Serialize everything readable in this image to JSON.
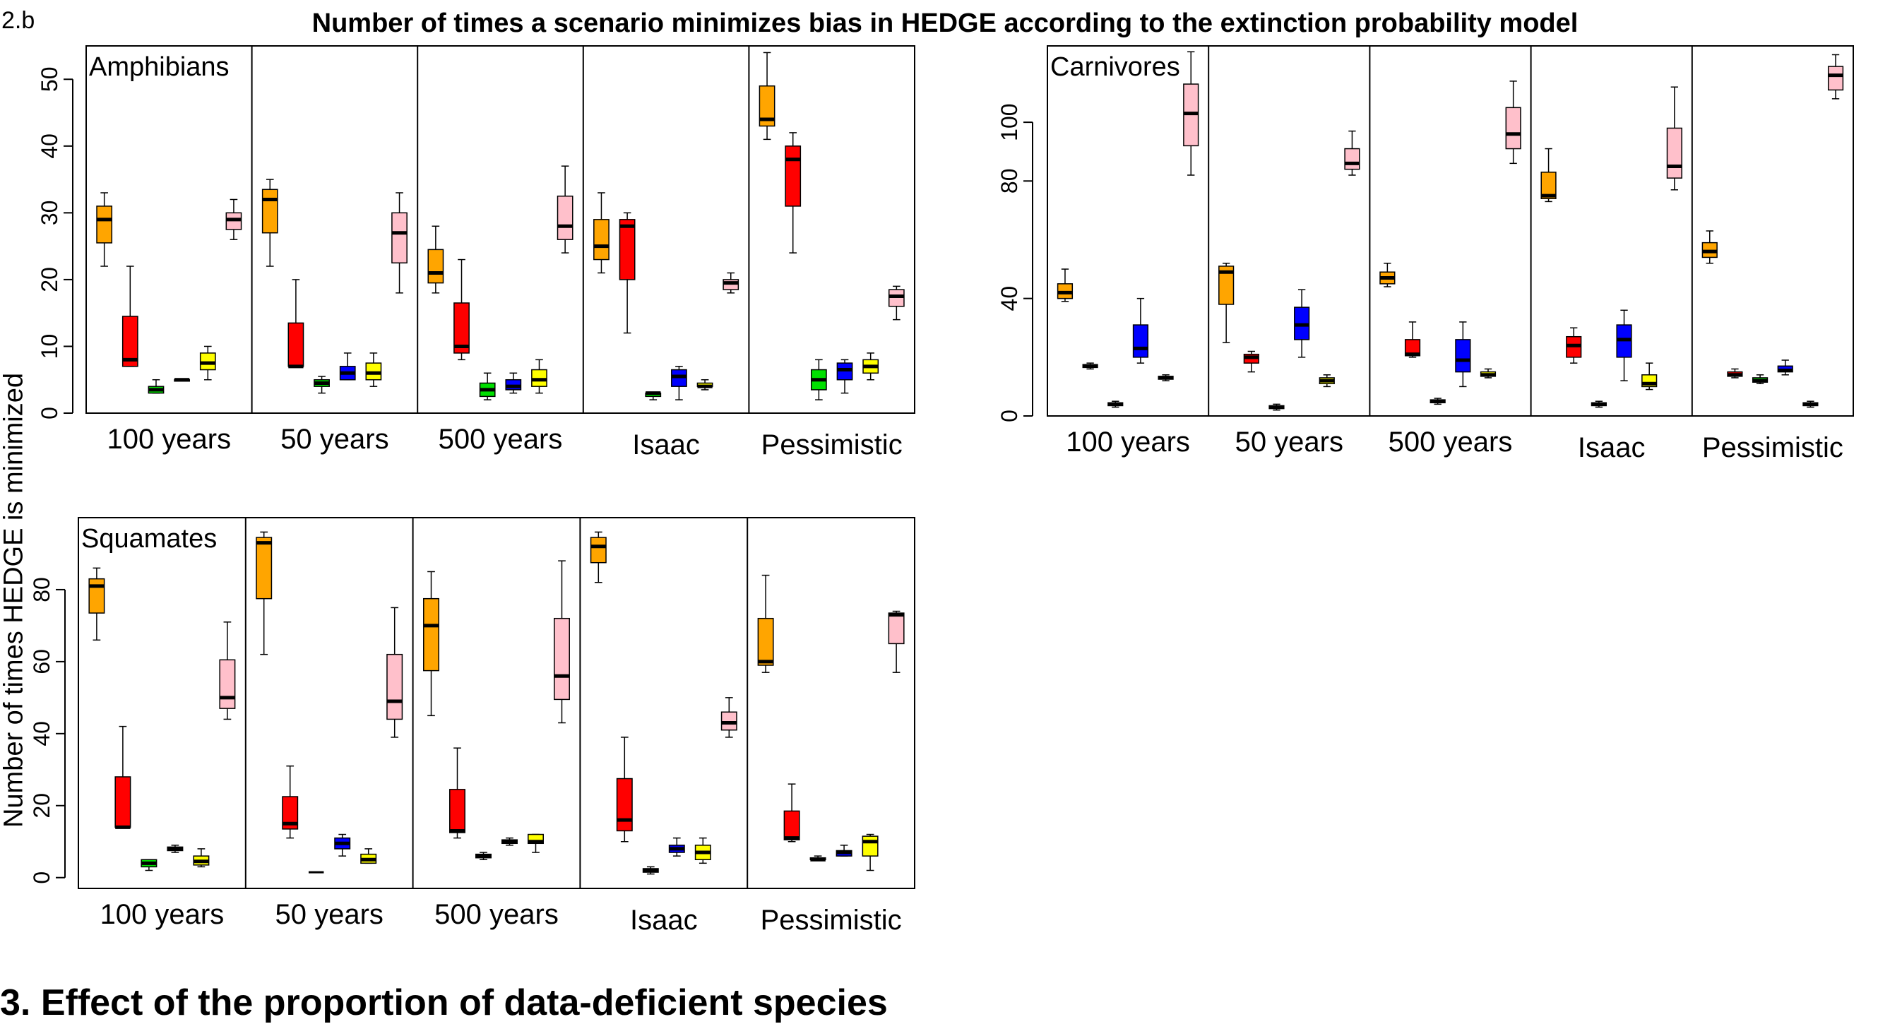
{
  "figure": {
    "label": "2.b",
    "title": "Number of times a scenario minimizes bias in HEDGE according to the extinction probability model",
    "ylabel": "Number of times HEDGE is minimized",
    "next_section_heading": "3. Effect of the proportion of data-deficient species"
  },
  "colors": [
    "#FFA500",
    "#FF0000",
    "#00E000",
    "#0000FF",
    "#FFFF00",
    "#FFC0CB"
  ],
  "chart_data": [
    {
      "type": "box",
      "panel": "Amphibians",
      "title": "Amphibians",
      "groups": [
        "100 years",
        "50 years",
        "500 years",
        "Isaac",
        "Pessimistic"
      ],
      "ylim": [
        0,
        55
      ],
      "yticks": [
        0,
        10,
        20,
        30,
        40,
        50
      ],
      "missing_boxes": [],
      "boxes": [
        [
          [
            22,
            25.5,
            29,
            31,
            33
          ],
          [
            7,
            7,
            8,
            14.5,
            22
          ],
          [
            3,
            3,
            3.5,
            4,
            5
          ],
          [
            5,
            5,
            5,
            5,
            5
          ],
          [
            5,
            6.5,
            7.5,
            9,
            10
          ],
          [
            26,
            27.5,
            29,
            30,
            32
          ]
        ],
        [
          [
            22,
            27,
            32,
            33.5,
            35
          ],
          [
            7,
            7,
            7,
            13.5,
            20
          ],
          [
            3,
            4,
            4.5,
            5,
            5.5
          ],
          [
            5,
            5,
            6,
            7,
            9
          ],
          [
            4,
            5,
            6,
            7.5,
            9
          ],
          [
            18,
            22.5,
            27,
            30,
            33
          ]
        ],
        [
          [
            18,
            19.5,
            21,
            24.5,
            28
          ],
          [
            8,
            9,
            10,
            16.5,
            23
          ],
          [
            2,
            2.5,
            3.5,
            4.5,
            6
          ],
          [
            3,
            3.5,
            4,
            5,
            6
          ],
          [
            3,
            4,
            5,
            6.5,
            8
          ],
          [
            24,
            26,
            28,
            32.5,
            37
          ]
        ],
        [
          [
            21,
            23,
            25,
            29,
            33
          ],
          [
            12,
            20,
            28,
            29,
            30
          ],
          [
            2,
            2.5,
            3,
            3,
            3
          ],
          [
            2,
            4,
            5.5,
            6.5,
            7
          ],
          [
            3.5,
            4,
            4,
            4.5,
            5
          ],
          [
            18,
            18.5,
            19.5,
            20,
            21
          ]
        ],
        [
          [
            41,
            43,
            44,
            49,
            54
          ],
          [
            24,
            31,
            38,
            40,
            42
          ],
          [
            2,
            3.5,
            5,
            6.5,
            8
          ],
          [
            3,
            5,
            6.5,
            7.5,
            8
          ],
          [
            5,
            6,
            7,
            8,
            9
          ],
          [
            14,
            16,
            17.5,
            18.5,
            19
          ]
        ]
      ]
    },
    {
      "type": "box",
      "panel": "Carnivores",
      "title": "Carnivores",
      "groups": [
        "100 years",
        "50 years",
        "500 years",
        "Isaac",
        "Pessimistic"
      ],
      "ylim": [
        0,
        126
      ],
      "yticks": [
        0,
        40,
        80,
        100
      ],
      "missing_boxes": [],
      "boxes": [
        [
          [
            39,
            40,
            42,
            45,
            50
          ],
          [
            16,
            16.5,
            17,
            17.5,
            18
          ],
          [
            3,
            3.5,
            4,
            4.5,
            5
          ],
          [
            18,
            20,
            23,
            31,
            40
          ],
          [
            12,
            12.5,
            13,
            13.5,
            14
          ],
          [
            82,
            92,
            103,
            113,
            124
          ]
        ],
        [
          [
            25,
            38,
            49,
            51,
            52
          ],
          [
            15,
            18,
            20,
            21,
            22
          ],
          [
            2,
            2.5,
            3,
            3.5,
            4
          ],
          [
            20,
            26,
            31,
            37,
            43
          ],
          [
            10,
            11,
            12,
            13,
            14
          ],
          [
            82,
            84,
            86,
            91,
            97
          ]
        ],
        [
          [
            44,
            45,
            47,
            49,
            52
          ],
          [
            20,
            20.5,
            21,
            26,
            32
          ],
          [
            4,
            4.5,
            5,
            5.5,
            6
          ],
          [
            10,
            15,
            19,
            26,
            32
          ],
          [
            13,
            13.5,
            14,
            15,
            16
          ],
          [
            86,
            91,
            96,
            105,
            114
          ]
        ],
        [
          [
            73,
            74,
            75,
            83,
            91
          ],
          [
            18,
            20,
            24,
            27,
            30
          ],
          [
            3,
            3.5,
            4,
            4.5,
            5
          ],
          [
            12,
            20,
            26,
            31,
            36
          ],
          [
            9,
            10,
            11,
            14,
            18
          ],
          [
            77,
            81,
            85,
            98,
            112
          ]
        ],
        [
          [
            52,
            54,
            56,
            59,
            63
          ],
          [
            13,
            13.5,
            14,
            15,
            16
          ],
          [
            11,
            11.5,
            12,
            13,
            14
          ],
          [
            14,
            15,
            15.5,
            17,
            19
          ],
          [
            3,
            3.5,
            4,
            4.5,
            5
          ],
          [
            108,
            111,
            116,
            119,
            123
          ]
        ]
      ]
    },
    {
      "type": "box",
      "panel": "Squamates",
      "title": "Squamates",
      "groups": [
        "100 years",
        "50 years",
        "500 years",
        "Isaac",
        "Pessimistic"
      ],
      "ylim": [
        -3,
        100
      ],
      "yticks": [
        0,
        20,
        40,
        60,
        80
      ],
      "missing_boxes": [
        [
          1,
          2
        ]
      ],
      "boxes": [
        [
          [
            66,
            73.5,
            81,
            83,
            86
          ],
          [
            14,
            14,
            14,
            28,
            42
          ],
          [
            2,
            3,
            4,
            5,
            5
          ],
          [
            7,
            7.5,
            8,
            8.5,
            9
          ],
          [
            3,
            3.5,
            4.5,
            6,
            8
          ],
          [
            44,
            47,
            50,
            60.5,
            71
          ]
        ],
        [
          [
            62,
            77.5,
            93,
            94.5,
            96
          ],
          [
            11,
            13.5,
            15,
            22.5,
            31
          ],
          null,
          [
            6,
            8,
            9.5,
            11,
            12
          ],
          [
            4,
            4,
            5,
            6.5,
            8
          ],
          [
            39,
            44,
            49,
            62,
            75
          ]
        ],
        [
          [
            45,
            57.5,
            70,
            77.5,
            85
          ],
          [
            11,
            12.5,
            13,
            24.5,
            36
          ],
          [
            5,
            5.5,
            6,
            6.5,
            7
          ],
          [
            9,
            9.5,
            10,
            10.5,
            11
          ],
          [
            7,
            9.5,
            10,
            12,
            12
          ],
          [
            43,
            49.5,
            56,
            72,
            88
          ]
        ],
        [
          [
            82,
            87.5,
            92,
            94.5,
            96
          ],
          [
            10,
            13,
            16,
            27.5,
            39
          ],
          [
            1,
            1.5,
            2,
            2.5,
            3
          ],
          [
            6,
            7,
            8,
            9,
            11
          ],
          [
            4,
            5,
            7,
            9,
            11
          ],
          [
            39,
            41,
            43,
            46,
            50
          ]
        ],
        [
          [
            57,
            59,
            60,
            72,
            84
          ],
          [
            10,
            10.5,
            11,
            18.5,
            26
          ],
          [
            5,
            5,
            5,
            5.5,
            6
          ],
          [
            6,
            6,
            7,
            7.5,
            9
          ],
          [
            2,
            6,
            10,
            11.5,
            12
          ],
          [
            57,
            65,
            73,
            73.5,
            74
          ]
        ]
      ]
    }
  ]
}
